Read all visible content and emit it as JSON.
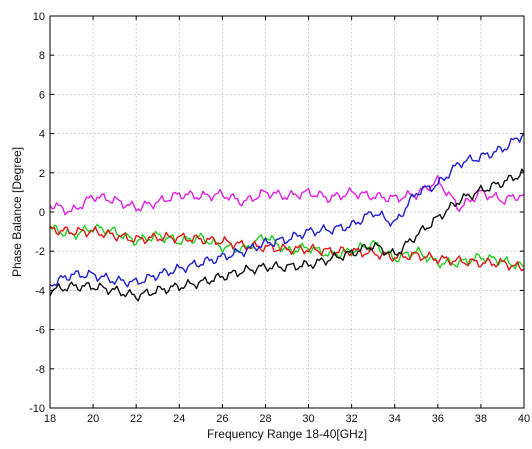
{
  "chart_data": {
    "type": "line",
    "title": "",
    "xlabel": "Frequency Range 18-40[GHz]",
    "ylabel": "Phase Balance [Degree]",
    "xlim": [
      18,
      40
    ],
    "ylim": [
      -10,
      10
    ],
    "xticks": [
      "18",
      "20",
      "22",
      "24",
      "26",
      "28",
      "30",
      "32",
      "34",
      "36",
      "38",
      "40"
    ],
    "yticks": [
      "10",
      "8",
      "6",
      "4",
      "2",
      "0",
      "-2",
      "-4",
      "-6",
      "-8",
      "-10"
    ],
    "grid": true,
    "x": [
      18,
      19,
      20,
      21,
      22,
      23,
      24,
      25,
      26,
      27,
      28,
      29,
      30,
      31,
      32,
      33,
      34,
      35,
      36,
      37,
      38,
      39,
      40
    ],
    "series": [
      {
        "color": "#e020e0",
        "values": [
          0.4,
          0.0,
          0.8,
          0.6,
          0.2,
          0.5,
          0.9,
          0.8,
          0.9,
          0.5,
          1.0,
          0.8,
          1.0,
          0.7,
          1.0,
          0.8,
          0.7,
          0.9,
          1.6,
          0.2,
          1.0,
          0.6,
          0.9
        ]
      },
      {
        "color": "#22d022",
        "values": [
          -0.8,
          -1.2,
          -0.8,
          -1.0,
          -1.5,
          -1.2,
          -1.5,
          -1.3,
          -1.8,
          -1.9,
          -1.2,
          -2.0,
          -1.8,
          -2.2,
          -2.0,
          -1.6,
          -2.4,
          -2.0,
          -2.6,
          -2.6,
          -2.3,
          -2.5,
          -2.8
        ]
      },
      {
        "color": "#e01818",
        "values": [
          -0.9,
          -1.0,
          -1.0,
          -1.2,
          -1.4,
          -1.3,
          -1.3,
          -1.4,
          -1.5,
          -1.7,
          -1.8,
          -1.9,
          -1.9,
          -2.0,
          -2.0,
          -2.1,
          -2.3,
          -2.2,
          -2.4,
          -2.5,
          -2.6,
          -2.6,
          -2.9
        ]
      },
      {
        "color": "#2020d0",
        "values": [
          -3.7,
          -3.2,
          -3.2,
          -3.5,
          -3.6,
          -3.2,
          -2.9,
          -2.6,
          -2.3,
          -2.0,
          -1.6,
          -1.4,
          -1.0,
          -0.9,
          -0.7,
          0.0,
          -0.6,
          1.0,
          1.4,
          2.5,
          2.8,
          3.2,
          4.0
        ]
      },
      {
        "color": "#111111",
        "values": [
          -4.0,
          -3.8,
          -3.8,
          -4.0,
          -4.3,
          -4.0,
          -3.8,
          -3.6,
          -3.3,
          -3.0,
          -2.8,
          -2.8,
          -2.7,
          -2.4,
          -2.1,
          -1.7,
          -2.2,
          -1.2,
          -0.3,
          0.6,
          1.1,
          1.5,
          2.0
        ]
      }
    ]
  }
}
